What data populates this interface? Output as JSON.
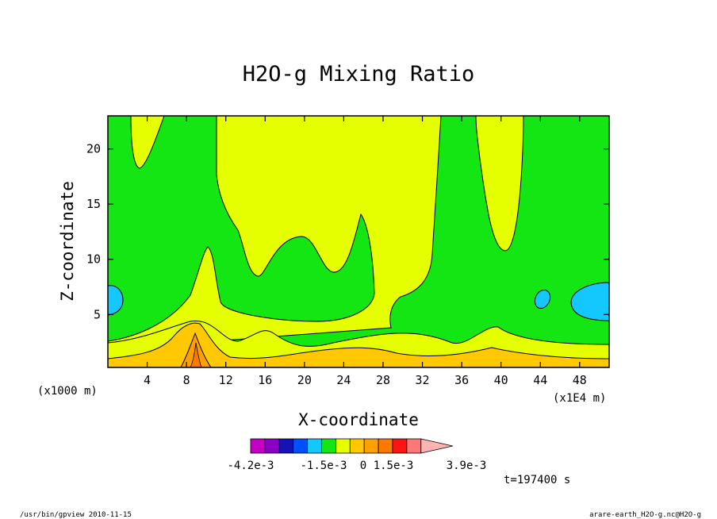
{
  "chart_data": {
    "type": "contour",
    "title": "H2O-g Mixing Ratio",
    "xlabel": "X-coordinate",
    "ylabel": "Z-coordinate",
    "x_unit": "(x1E4 m)",
    "y_unit": "(x1000 m)",
    "xlim": [
      0,
      51
    ],
    "ylim": [
      0.2,
      23
    ],
    "x_ticks": [
      4,
      8,
      12,
      16,
      20,
      24,
      28,
      32,
      36,
      40,
      44,
      48
    ],
    "y_ticks": [
      5,
      10,
      15,
      20
    ],
    "colorbar": {
      "colors": [
        "#c400c4",
        "#8a00c4",
        "#1414b4",
        "#0050ff",
        "#14c8ff",
        "#14e614",
        "#e6ff00",
        "#ffc800",
        "#ffa000",
        "#ff7800",
        "#ff1414",
        "#ff7878",
        "#ffb4b4"
      ],
      "tick_labels": [
        "-4.2e-3",
        "-1.5e-3",
        "0",
        "1.5e-3",
        "3.9e-3"
      ]
    },
    "time_label": "t=197400 s"
  },
  "footer": {
    "left": "/usr/bin/gpview  2010-11-15",
    "right": "arare-earth_H2O-g.nc@H2O-g"
  }
}
